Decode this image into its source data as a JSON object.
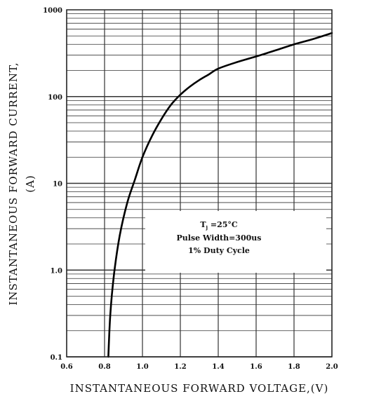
{
  "chart_data": {
    "type": "line",
    "xlabel": "INSTANTANEOUS FORWARD VOLTAGE,(V)",
    "ylabel_line1": "INSTANTANEOUS FORWARD CURRENT,",
    "ylabel_line2": "(A)",
    "xlim": [
      0.6,
      2.0
    ],
    "ylim": [
      0.1,
      1000
    ],
    "yscale": "log",
    "grid": true,
    "x_ticks": [
      "0.6",
      "0.8",
      "1.0",
      "1.2",
      "1.4",
      "1.6",
      "1.8",
      "2.0"
    ],
    "y_ticks": [
      "0.1",
      "1.0",
      "10",
      "100",
      "1000"
    ],
    "annotation": {
      "line1_main": "T",
      "line1_sub": "j",
      "line1_rest": " =25°C",
      "line2": "Pulse Width=300us",
      "line3": "1% Duty Cycle"
    },
    "series": [
      {
        "x": [
          0.82,
          0.83,
          0.85,
          0.88,
          0.92,
          0.96,
          1.0,
          1.05,
          1.1,
          1.15,
          1.2,
          1.25,
          1.3,
          1.35,
          1.4,
          1.5,
          1.6,
          1.7,
          1.8,
          1.9,
          2.0
        ],
        "y": [
          0.1,
          0.3,
          0.9,
          2.5,
          6,
          11,
          20,
          35,
          55,
          80,
          105,
          130,
          155,
          180,
          210,
          250,
          290,
          340,
          400,
          460,
          540
        ]
      }
    ]
  }
}
